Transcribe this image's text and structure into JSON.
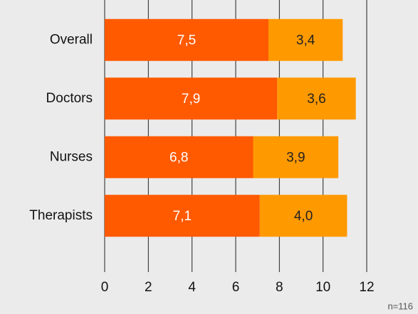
{
  "chart_data": {
    "type": "stacked-barh",
    "categories": [
      "Overall",
      "Doctors",
      "Nurses",
      "Therapists"
    ],
    "series": [
      {
        "color": "#ff5a00",
        "values": [
          7.5,
          7.9,
          6.8,
          7.1
        ],
        "value_labels": [
          "7,5",
          "7,9",
          "6,8",
          "7,1"
        ]
      },
      {
        "color": "#ff9900",
        "values": [
          3.4,
          3.6,
          3.9,
          4.0
        ],
        "value_labels": [
          "3,4",
          "3,6",
          "3,9",
          "4,0"
        ]
      }
    ],
    "xlim": [
      0,
      12
    ],
    "xticks": [
      0,
      2,
      4,
      6,
      8,
      10,
      12
    ],
    "grid": true,
    "annotation": "n=116"
  }
}
